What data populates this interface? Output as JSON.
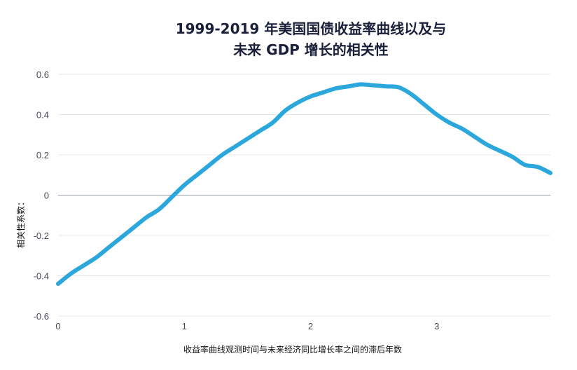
{
  "chart_data": {
    "type": "line",
    "title_line1": "1999-2019 年美国国债收益率曲线以及与",
    "title_line2": "未来 GDP 增长的相关性",
    "xlabel": "收益率曲线观测时间与未来经济同比增长率之间的滞后年数",
    "ylabel": "相关性系数：",
    "xlim": [
      0,
      3.9
    ],
    "ylim": [
      -0.6,
      0.6
    ],
    "x_ticks": [
      0,
      1,
      2,
      3
    ],
    "x_tick_labels": [
      "0",
      "1",
      "2",
      "3"
    ],
    "y_ticks": [
      0.6,
      0.4,
      0.2,
      0,
      -0.2,
      -0.4,
      -0.6
    ],
    "y_tick_labels": [
      "0.6",
      "0.4",
      "0.2",
      "0",
      "-0.2",
      "-0.4",
      "-0.6"
    ],
    "grid": true,
    "series": [
      {
        "name": "相关性系数",
        "color": "#2ba7dc",
        "x": [
          0,
          0.1,
          0.2,
          0.3,
          0.4,
          0.5,
          0.6,
          0.7,
          0.8,
          0.9,
          1.0,
          1.1,
          1.2,
          1.3,
          1.4,
          1.5,
          1.6,
          1.7,
          1.8,
          1.9,
          2.0,
          2.1,
          2.2,
          2.3,
          2.4,
          2.5,
          2.6,
          2.7,
          2.8,
          2.9,
          3.0,
          3.1,
          3.2,
          3.3,
          3.4,
          3.5,
          3.6,
          3.7,
          3.8,
          3.9
        ],
        "y": [
          -0.44,
          -0.39,
          -0.35,
          -0.31,
          -0.26,
          -0.21,
          -0.16,
          -0.11,
          -0.07,
          -0.01,
          0.05,
          0.1,
          0.15,
          0.2,
          0.24,
          0.28,
          0.32,
          0.36,
          0.42,
          0.46,
          0.49,
          0.51,
          0.53,
          0.54,
          0.55,
          0.545,
          0.54,
          0.535,
          0.5,
          0.45,
          0.4,
          0.36,
          0.33,
          0.29,
          0.25,
          0.22,
          0.19,
          0.15,
          0.14,
          0.11
        ]
      }
    ]
  }
}
